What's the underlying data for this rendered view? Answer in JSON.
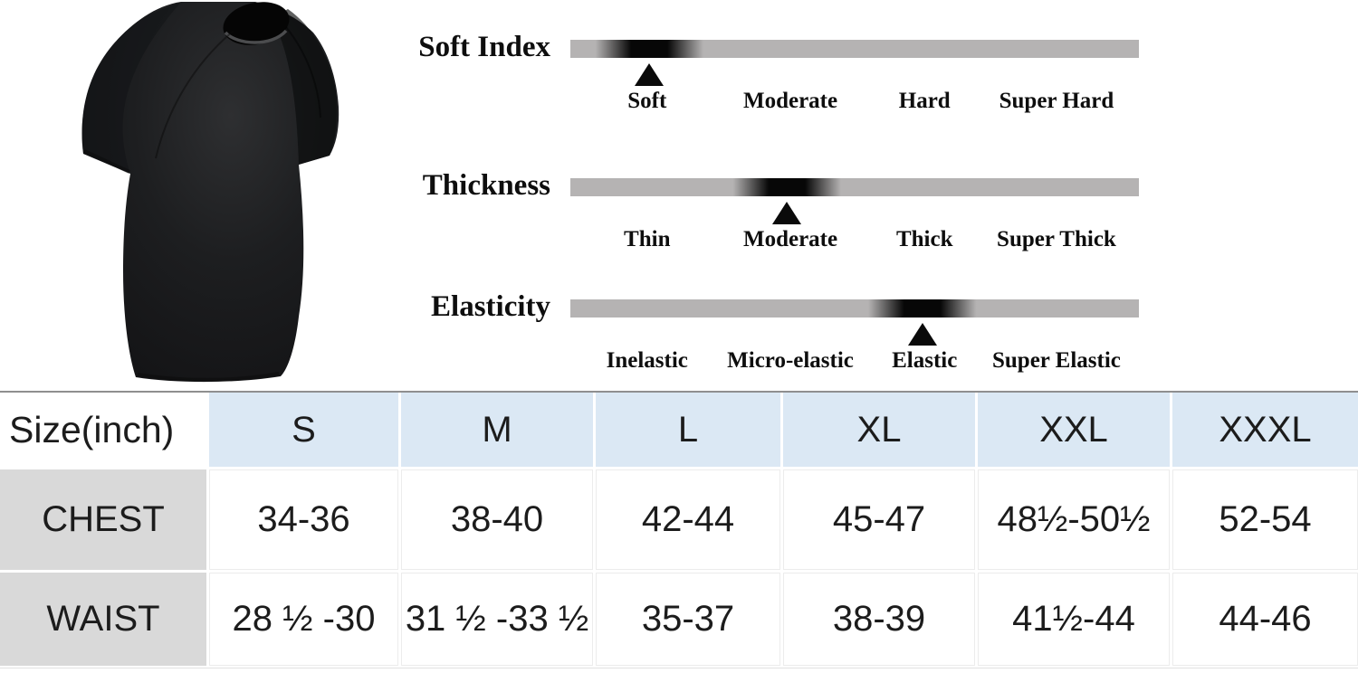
{
  "colors": {
    "background": "#ffffff",
    "bar_gray": "#b5b3b3",
    "marker_black": "#070707",
    "header_blue": "#dbe8f4",
    "row_label_gray": "#d9d9d9",
    "grid_line": "#ececec",
    "table_top_border": "#8f8f8f",
    "text": "#111111",
    "shirt_black": "#1a1b1d"
  },
  "hero": {
    "name": "black-crewneck-tshirt-photo"
  },
  "scales": [
    {
      "title": "Soft Index",
      "labels": [
        "Soft",
        "Moderate",
        "Hard",
        "Super Hard"
      ],
      "label_pcts": [
        13.5,
        38.7,
        62.3,
        85.5
      ],
      "marker_pct": 13.9,
      "selected": "Soft"
    },
    {
      "title": "Thickness",
      "labels": [
        "Thin",
        "Moderate",
        "Thick",
        "Super Thick"
      ],
      "label_pcts": [
        13.5,
        38.7,
        62.3,
        85.5
      ],
      "marker_pct": 38.1,
      "selected": "Moderate"
    },
    {
      "title": "Elasticity",
      "labels": [
        "Inelastic",
        "Micro-elastic",
        "Elastic",
        "Super Elastic"
      ],
      "label_pcts": [
        13.5,
        38.7,
        62.3,
        85.5
      ],
      "marker_pct": 61.9,
      "selected": "Elastic"
    }
  ],
  "size_table": {
    "unit_header": "Size(inch)",
    "columns": [
      "S",
      "M",
      "L",
      "XL",
      "XXL",
      "XXXL"
    ],
    "rows": [
      {
        "label": "CHEST",
        "values": [
          "34-36",
          "38-40",
          "42-44",
          "45-47",
          "48½-50½",
          "52-54"
        ]
      },
      {
        "label": "WAIST",
        "values": [
          "28 ½ -30",
          "31 ½ -33 ½",
          "35-37",
          "38-39",
          "41½-44",
          "44-46"
        ]
      }
    ]
  },
  "chart_data": [
    {
      "type": "table",
      "title": "Size(inch)",
      "columns": [
        "S",
        "M",
        "L",
        "XL",
        "XXL",
        "XXXL"
      ],
      "rows": [
        [
          "CHEST",
          "34-36",
          "38-40",
          "42-44",
          "45-47",
          "48½-50½",
          "52-54"
        ],
        [
          "WAIST",
          "28 ½ -30",
          "31 ½ -33 ½",
          "35-37",
          "38-39",
          "41½-44",
          "44-46"
        ]
      ]
    },
    {
      "type": "table",
      "title": "Soft Index",
      "columns": [
        "Soft",
        "Moderate",
        "Hard",
        "Super Hard"
      ],
      "rows": [
        [
          "marker",
          "Soft"
        ]
      ]
    },
    {
      "type": "table",
      "title": "Thickness",
      "columns": [
        "Thin",
        "Moderate",
        "Thick",
        "Super Thick"
      ],
      "rows": [
        [
          "marker",
          "Moderate"
        ]
      ]
    },
    {
      "type": "table",
      "title": "Elasticity",
      "columns": [
        "Inelastic",
        "Micro-elastic",
        "Elastic",
        "Super Elastic"
      ],
      "rows": [
        [
          "marker",
          "Elastic"
        ]
      ]
    }
  ]
}
